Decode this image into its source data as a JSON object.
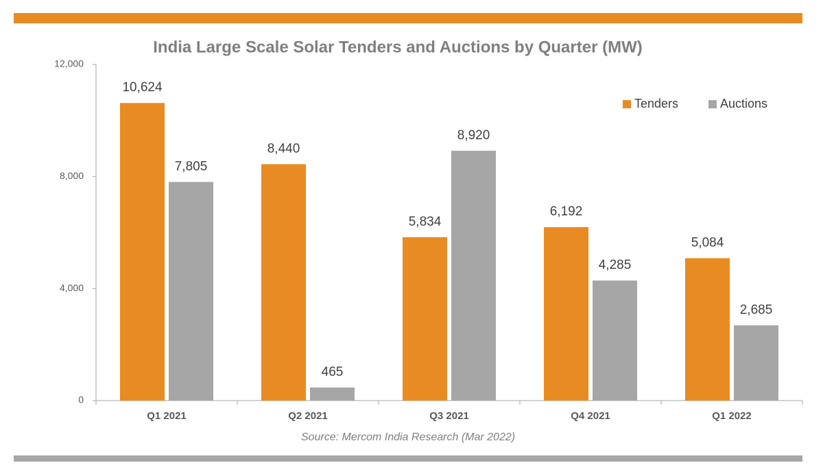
{
  "chart_data": {
    "type": "bar",
    "title": "India Large Scale Solar Tenders and Auctions by Quarter (MW)",
    "source": "Source: Mercom India Research (Mar 2022)",
    "categories": [
      "Q1 2021",
      "Q2 2021",
      "Q3 2021",
      "Q4 2021",
      "Q1 2022"
    ],
    "series": [
      {
        "name": "Tenders",
        "color": "#e98b23",
        "values": [
          10624,
          8440,
          5834,
          6192,
          5084
        ],
        "value_labels": [
          "10,624",
          "8,440",
          "5,834",
          "6,192",
          "5,084"
        ]
      },
      {
        "name": "Auctions",
        "color": "#a6a6a7",
        "values": [
          7805,
          465,
          8920,
          4285,
          2685
        ],
        "value_labels": [
          "7,805",
          "465",
          "8,920",
          "4,285",
          "2,685"
        ]
      }
    ],
    "ylim": [
      0,
      12000
    ],
    "yticks": [
      0,
      {
        "value": 4000,
        "label": "4,000"
      },
      {
        "value": 8000,
        "label": "8,000"
      },
      {
        "value": 12000,
        "label": "12,000"
      }
    ],
    "grid": false,
    "legend": "upper right"
  }
}
